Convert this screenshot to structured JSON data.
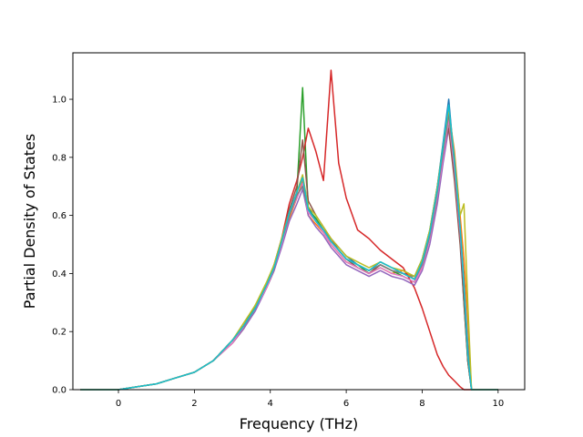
{
  "chart_data": {
    "type": "line",
    "title": "",
    "xlabel": "Frequency (THz)",
    "ylabel": "Partial Density of States",
    "xlim": [
      -1.2,
      10.7
    ],
    "ylim": [
      0.0,
      1.16
    ],
    "xticks": [
      0,
      2,
      4,
      6,
      8,
      10
    ],
    "xtick_labels": [
      "0",
      "2",
      "4",
      "6",
      "8",
      "10"
    ],
    "yticks": [
      0.0,
      0.2,
      0.4,
      0.6,
      0.8,
      1.0
    ],
    "ytick_labels": [
      "0.0",
      "0.2",
      "0.4",
      "0.6",
      "0.8",
      "1.0"
    ],
    "grid": false,
    "legend": "none",
    "x": [
      -1.0,
      -0.5,
      0.0,
      0.5,
      1.0,
      1.5,
      2.0,
      2.5,
      3.0,
      3.3,
      3.6,
      3.9,
      4.1,
      4.3,
      4.5,
      4.7,
      4.85,
      5.0,
      5.2,
      5.4,
      5.6,
      5.8,
      6.0,
      6.3,
      6.6,
      6.9,
      7.2,
      7.5,
      7.8,
      8.0,
      8.2,
      8.4,
      8.55,
      8.7,
      8.85,
      9.0,
      9.1,
      9.2,
      9.3,
      9.5,
      10.0
    ],
    "series": [
      {
        "color": "#1f77b4",
        "values": [
          0.0,
          0.0,
          0.0,
          0.01,
          0.02,
          0.04,
          0.06,
          0.1,
          0.17,
          0.22,
          0.28,
          0.36,
          0.42,
          0.5,
          0.6,
          0.67,
          0.7,
          0.63,
          0.58,
          0.55,
          0.52,
          0.49,
          0.46,
          0.43,
          0.41,
          0.44,
          0.42,
          0.4,
          0.39,
          0.45,
          0.55,
          0.7,
          0.85,
          1.0,
          0.78,
          0.55,
          0.35,
          0.1,
          0.0,
          0.0,
          0.0
        ]
      },
      {
        "color": "#ff7f0e",
        "values": [
          0.0,
          0.0,
          0.0,
          0.01,
          0.02,
          0.04,
          0.06,
          0.1,
          0.16,
          0.21,
          0.28,
          0.35,
          0.41,
          0.5,
          0.59,
          0.66,
          0.72,
          0.6,
          0.57,
          0.54,
          0.5,
          0.47,
          0.44,
          0.42,
          0.4,
          0.42,
          0.4,
          0.41,
          0.38,
          0.43,
          0.52,
          0.66,
          0.8,
          0.96,
          0.82,
          0.6,
          0.45,
          0.25,
          0.0,
          0.0,
          0.0
        ]
      },
      {
        "color": "#2ca02c",
        "values": [
          0.0,
          0.0,
          0.0,
          0.01,
          0.02,
          0.04,
          0.06,
          0.1,
          0.17,
          0.22,
          0.29,
          0.36,
          0.42,
          0.52,
          0.6,
          0.68,
          1.04,
          0.62,
          0.59,
          0.55,
          0.51,
          0.48,
          0.45,
          0.43,
          0.4,
          0.43,
          0.41,
          0.39,
          0.37,
          0.44,
          0.53,
          0.68,
          0.84,
          0.92,
          0.75,
          0.52,
          0.3,
          0.1,
          0.0,
          0.0,
          0.0
        ]
      },
      {
        "color": "#d62728",
        "values": [
          0.0,
          0.0,
          0.0,
          0.01,
          0.02,
          0.04,
          0.06,
          0.1,
          0.17,
          0.22,
          0.28,
          0.36,
          0.43,
          0.52,
          0.64,
          0.72,
          0.8,
          0.9,
          0.82,
          0.72,
          1.1,
          0.78,
          0.66,
          0.55,
          0.52,
          0.48,
          0.45,
          0.42,
          0.35,
          0.28,
          0.2,
          0.12,
          0.08,
          0.05,
          0.03,
          0.01,
          0.0,
          0.0,
          0.0,
          0.0,
          0.0
        ]
      },
      {
        "color": "#9467bd",
        "values": [
          0.0,
          0.0,
          0.0,
          0.01,
          0.02,
          0.04,
          0.06,
          0.1,
          0.16,
          0.21,
          0.27,
          0.35,
          0.41,
          0.49,
          0.58,
          0.64,
          0.69,
          0.6,
          0.56,
          0.53,
          0.49,
          0.46,
          0.43,
          0.41,
          0.39,
          0.41,
          0.39,
          0.38,
          0.36,
          0.41,
          0.5,
          0.64,
          0.78,
          0.9,
          0.74,
          0.52,
          0.34,
          0.12,
          0.0,
          0.0,
          0.0
        ]
      },
      {
        "color": "#8c564b",
        "values": [
          0.0,
          0.0,
          0.0,
          0.01,
          0.02,
          0.04,
          0.06,
          0.1,
          0.17,
          0.22,
          0.28,
          0.36,
          0.42,
          0.51,
          0.62,
          0.7,
          0.86,
          0.65,
          0.6,
          0.56,
          0.52,
          0.48,
          0.45,
          0.42,
          0.4,
          0.43,
          0.41,
          0.4,
          0.38,
          0.44,
          0.54,
          0.7,
          0.83,
          0.9,
          0.72,
          0.5,
          0.3,
          0.1,
          0.0,
          0.0,
          0.0
        ]
      },
      {
        "color": "#e377c2",
        "values": [
          0.0,
          0.0,
          0.0,
          0.01,
          0.02,
          0.04,
          0.06,
          0.1,
          0.16,
          0.22,
          0.28,
          0.35,
          0.42,
          0.5,
          0.6,
          0.66,
          0.71,
          0.61,
          0.58,
          0.54,
          0.5,
          0.47,
          0.44,
          0.42,
          0.4,
          0.42,
          0.4,
          0.39,
          0.37,
          0.42,
          0.52,
          0.67,
          0.8,
          0.93,
          0.76,
          0.54,
          0.36,
          0.14,
          0.0,
          0.0,
          0.0
        ]
      },
      {
        "color": "#7f7f7f",
        "values": [
          0.0,
          0.0,
          0.0,
          0.01,
          0.02,
          0.04,
          0.06,
          0.1,
          0.17,
          0.22,
          0.28,
          0.36,
          0.42,
          0.51,
          0.6,
          0.67,
          0.7,
          0.62,
          0.58,
          0.55,
          0.51,
          0.48,
          0.45,
          0.43,
          0.41,
          0.43,
          0.41,
          0.4,
          0.38,
          0.43,
          0.53,
          0.68,
          0.82,
          0.95,
          0.78,
          0.56,
          0.38,
          0.16,
          0.0,
          0.0,
          0.0
        ]
      },
      {
        "color": "#bcbd22",
        "values": [
          0.0,
          0.0,
          0.0,
          0.01,
          0.02,
          0.04,
          0.06,
          0.1,
          0.17,
          0.23,
          0.29,
          0.37,
          0.43,
          0.52,
          0.61,
          0.68,
          0.74,
          0.63,
          0.6,
          0.56,
          0.52,
          0.49,
          0.46,
          0.44,
          0.42,
          0.44,
          0.42,
          0.41,
          0.39,
          0.45,
          0.55,
          0.7,
          0.84,
          0.97,
          0.8,
          0.6,
          0.64,
          0.3,
          0.0,
          0.0,
          0.0
        ]
      },
      {
        "color": "#17becf",
        "values": [
          0.0,
          0.0,
          0.0,
          0.01,
          0.02,
          0.04,
          0.06,
          0.1,
          0.17,
          0.22,
          0.28,
          0.36,
          0.42,
          0.51,
          0.61,
          0.68,
          0.73,
          0.62,
          0.58,
          0.55,
          0.51,
          0.48,
          0.45,
          0.43,
          0.41,
          0.44,
          0.42,
          0.4,
          0.38,
          0.44,
          0.54,
          0.69,
          0.84,
          0.98,
          0.79,
          0.56,
          0.36,
          0.12,
          0.0,
          0.0,
          0.0
        ]
      }
    ]
  }
}
